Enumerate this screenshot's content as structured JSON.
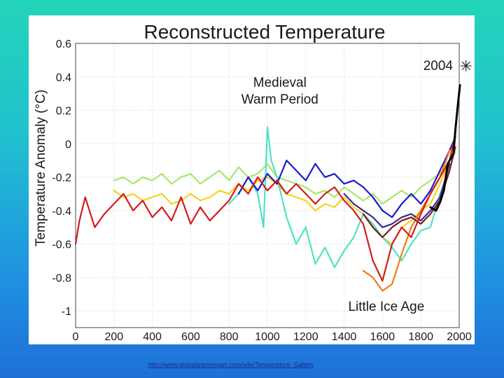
{
  "source_link": "http://www.globalwarmingart.com/wiki/Temperature_Gallery",
  "chart_data": {
    "type": "line",
    "title": "Reconstructed Temperature",
    "ylabel": "Temperature Anomaly (°C)",
    "xlabel": "",
    "xlim": [
      0,
      2000
    ],
    "ylim": [
      -1.1,
      0.6
    ],
    "grid": true,
    "x_ticks": [
      "0",
      "200",
      "400",
      "600",
      "800",
      "1000",
      "1200",
      "1400",
      "1600",
      "1800",
      "2000"
    ],
    "y_ticks": [
      "0.6",
      "0.4",
      "0.2",
      "0",
      "-0.2",
      "-0.4",
      "-0.6",
      "-0.8",
      "-1"
    ],
    "annotations": [
      {
        "text": "Medieval",
        "x": 1065,
        "y": 0.34
      },
      {
        "text": "Warm Period",
        "x": 1065,
        "y": 0.24
      },
      {
        "text": "Little Ice Age",
        "x": 1620,
        "y": -1.0
      },
      {
        "text": "2004",
        "x": 1890,
        "y": 0.44,
        "marker": "✳"
      }
    ],
    "series": [
      {
        "color": "#a6e86a",
        "x": [
          200,
          250,
          300,
          350,
          400,
          450,
          500,
          550,
          600,
          650,
          700,
          750,
          800,
          850,
          900,
          950,
          1000,
          1050,
          1100,
          1150,
          1200,
          1250,
          1300,
          1350,
          1400,
          1450,
          1500,
          1550,
          1600,
          1650,
          1700,
          1750,
          1800,
          1850,
          1900,
          1950,
          1980
        ],
        "y": [
          -0.22,
          -0.2,
          -0.24,
          -0.2,
          -0.22,
          -0.18,
          -0.24,
          -0.2,
          -0.18,
          -0.24,
          -0.2,
          -0.16,
          -0.22,
          -0.14,
          -0.2,
          -0.18,
          -0.12,
          -0.2,
          -0.22,
          -0.24,
          -0.26,
          -0.3,
          -0.28,
          -0.32,
          -0.26,
          -0.3,
          -0.34,
          -0.3,
          -0.36,
          -0.32,
          -0.28,
          -0.32,
          -0.26,
          -0.22,
          -0.18,
          -0.1,
          -0.05
        ]
      },
      {
        "color": "#f5d21e",
        "x": [
          200,
          250,
          300,
          350,
          400,
          450,
          500,
          550,
          600,
          650,
          700,
          750,
          800,
          850,
          900,
          950,
          1000,
          1050,
          1100,
          1150,
          1200,
          1250,
          1300,
          1350,
          1400,
          1450,
          1500,
          1550,
          1600,
          1650,
          1700,
          1750,
          1800,
          1850,
          1900,
          1950,
          1980
        ],
        "y": [
          -0.28,
          -0.32,
          -0.3,
          -0.34,
          -0.32,
          -0.3,
          -0.36,
          -0.34,
          -0.3,
          -0.34,
          -0.32,
          -0.28,
          -0.3,
          -0.24,
          -0.28,
          -0.22,
          -0.2,
          -0.24,
          -0.3,
          -0.32,
          -0.34,
          -0.4,
          -0.36,
          -0.38,
          -0.32,
          -0.38,
          -0.42,
          -0.5,
          -0.56,
          -0.6,
          -0.5,
          -0.46,
          -0.4,
          -0.36,
          -0.24,
          -0.1,
          -0.02
        ]
      },
      {
        "color": "#4fe3c4",
        "x": [
          800,
          850,
          900,
          950,
          980,
          1000,
          1020,
          1050,
          1100,
          1150,
          1200,
          1250,
          1300,
          1350,
          1400,
          1450,
          1500,
          1550,
          1600,
          1650,
          1700,
          1750,
          1800,
          1850,
          1900,
          1950
        ],
        "y": [
          -0.36,
          -0.3,
          -0.2,
          -0.3,
          -0.5,
          0.1,
          -0.1,
          -0.2,
          -0.44,
          -0.6,
          -0.5,
          -0.72,
          -0.62,
          -0.74,
          -0.64,
          -0.56,
          -0.42,
          -0.48,
          -0.56,
          -0.62,
          -0.7,
          -0.6,
          -0.52,
          -0.5,
          -0.3,
          -0.16
        ]
      },
      {
        "color": "#1a1acc",
        "x": [
          850,
          900,
          950,
          1000,
          1050,
          1100,
          1150,
          1200,
          1250,
          1300,
          1350,
          1400,
          1450,
          1500,
          1550,
          1600,
          1650,
          1700,
          1750,
          1800,
          1850,
          1900,
          1950,
          1980
        ],
        "y": [
          -0.3,
          -0.2,
          -0.28,
          -0.18,
          -0.24,
          -0.1,
          -0.16,
          -0.22,
          -0.12,
          -0.2,
          -0.18,
          -0.24,
          -0.22,
          -0.26,
          -0.32,
          -0.4,
          -0.44,
          -0.36,
          -0.3,
          -0.36,
          -0.28,
          -0.16,
          -0.04,
          0.04
        ]
      },
      {
        "color": "#3a2a96",
        "x": [
          1400,
          1450,
          1500,
          1550,
          1600,
          1650,
          1700,
          1750,
          1800,
          1850,
          1900,
          1950
        ],
        "y": [
          -0.3,
          -0.36,
          -0.4,
          -0.44,
          -0.5,
          -0.48,
          -0.44,
          -0.42,
          -0.46,
          -0.4,
          -0.32,
          -0.12
        ]
      },
      {
        "color": "#f07a1a",
        "x": [
          1500,
          1550,
          1600,
          1650,
          1700,
          1750,
          1800,
          1850,
          1900,
          1950
        ],
        "y": [
          -0.76,
          -0.8,
          -0.88,
          -0.84,
          -0.66,
          -0.5,
          -0.4,
          -0.3,
          -0.2,
          -0.04
        ]
      },
      {
        "color": "#7a1a1a",
        "x": [
          1500,
          1550,
          1600,
          1650,
          1700,
          1750,
          1800,
          1850,
          1900,
          1950,
          1980
        ],
        "y": [
          -0.42,
          -0.5,
          -0.56,
          -0.5,
          -0.46,
          -0.44,
          -0.48,
          -0.42,
          -0.34,
          -0.16,
          -0.02
        ]
      },
      {
        "color": "#d41a1a",
        "x": [
          0,
          20,
          50,
          100,
          150,
          200,
          250,
          300,
          350,
          400,
          450,
          500,
          550,
          600,
          650,
          700,
          750,
          800,
          850,
          900,
          950,
          1000,
          1050,
          1100,
          1150,
          1200,
          1250,
          1300,
          1350,
          1400,
          1450,
          1500,
          1550,
          1600,
          1650,
          1700,
          1750,
          1800,
          1850,
          1900,
          1950,
          1980
        ],
        "y": [
          -0.6,
          -0.46,
          -0.32,
          -0.5,
          -0.42,
          -0.36,
          -0.3,
          -0.4,
          -0.34,
          -0.44,
          -0.38,
          -0.46,
          -0.32,
          -0.48,
          -0.38,
          -0.46,
          -0.4,
          -0.34,
          -0.24,
          -0.3,
          -0.2,
          -0.28,
          -0.22,
          -0.3,
          -0.24,
          -0.3,
          -0.36,
          -0.3,
          -0.26,
          -0.34,
          -0.4,
          -0.48,
          -0.7,
          -0.82,
          -0.6,
          -0.5,
          -0.56,
          -0.42,
          -0.3,
          -0.2,
          -0.1,
          0.06
        ]
      },
      {
        "color": "#000000",
        "x": [
          1850,
          1880,
          1900,
          1920,
          1940,
          1950,
          1960,
          1970,
          1980,
          1990,
          2004
        ],
        "y": [
          -0.38,
          -0.4,
          -0.35,
          -0.28,
          -0.12,
          -0.1,
          -0.08,
          -0.06,
          0.08,
          0.2,
          0.35
        ]
      }
    ]
  }
}
